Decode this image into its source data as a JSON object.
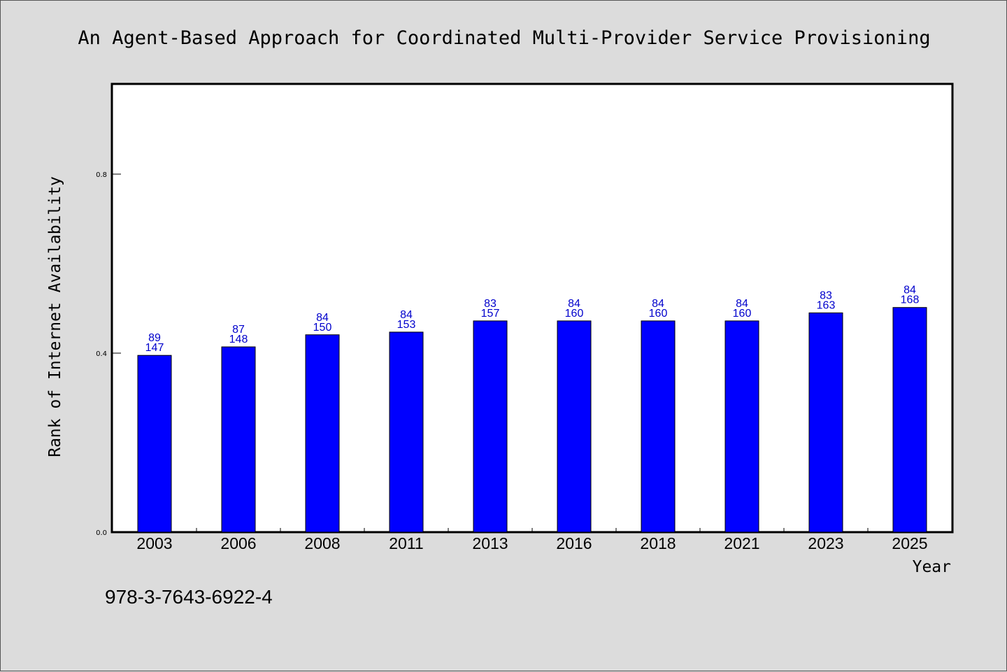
{
  "chart_data": {
    "type": "bar",
    "title": "An Agent-Based Approach for Coordinated Multi-Provider Service Provisioning",
    "xlabel": "Year",
    "ylabel": "Rank of Internet Availability",
    "categories": [
      "2003",
      "2006",
      "2008",
      "2011",
      "2013",
      "2016",
      "2018",
      "2021",
      "2023",
      "2025"
    ],
    "values": [
      0.395,
      0.414,
      0.441,
      0.447,
      0.472,
      0.472,
      0.472,
      0.472,
      0.49,
      0.502
    ],
    "label_top": [
      "89",
      "87",
      "84",
      "84",
      "83",
      "84",
      "84",
      "84",
      "83",
      "84"
    ],
    "label_bottom": [
      "147",
      "148",
      "150",
      "153",
      "157",
      "160",
      "160",
      "160",
      "163",
      "168"
    ],
    "yticks": [
      "0.0",
      "0.4",
      "0.8"
    ],
    "ytick_values": [
      0,
      0.4,
      0.8
    ],
    "ylim": [
      0,
      1.0
    ],
    "grid": false,
    "bar_color": "#0000ff",
    "label_color": "#0000cc"
  },
  "footer": {
    "isbn": "978-3-7643-6922-4"
  }
}
